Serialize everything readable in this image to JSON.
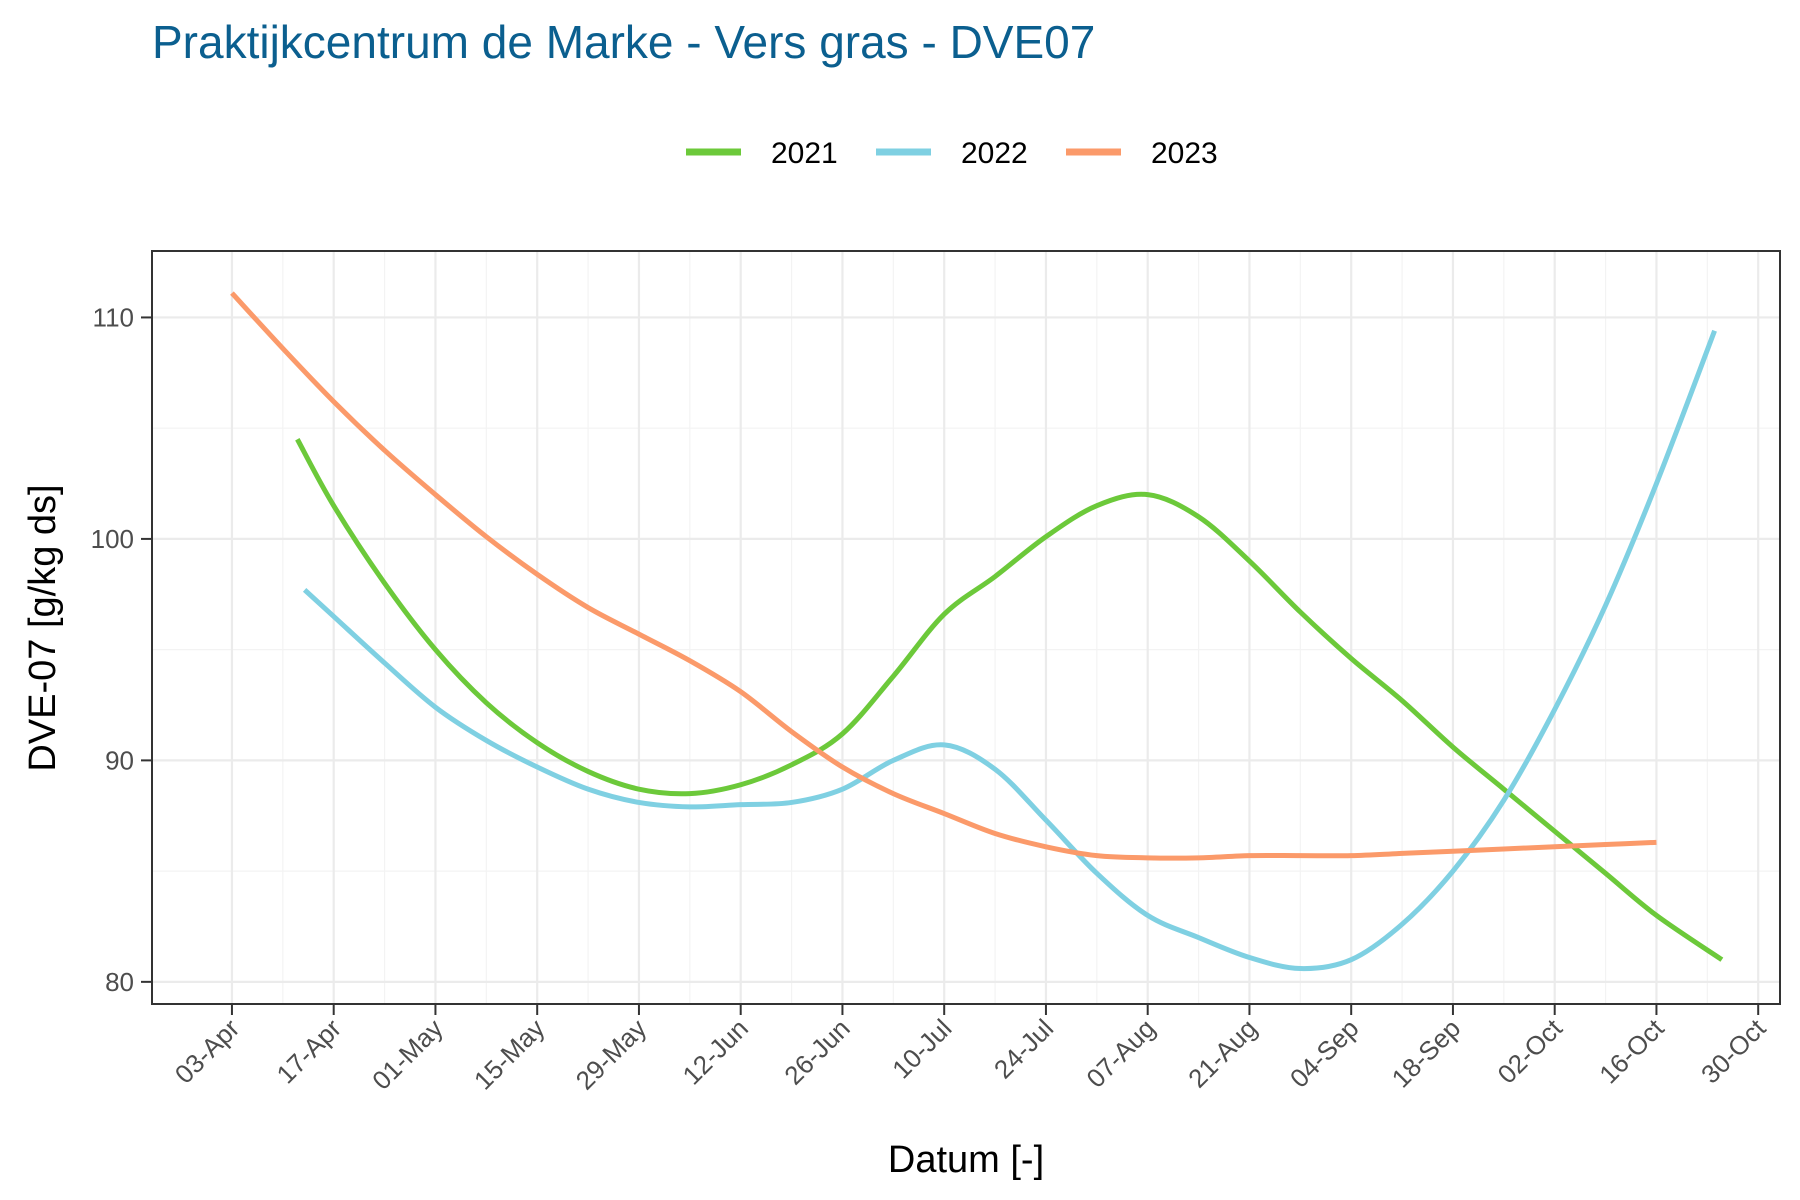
{
  "chart_data": {
    "type": "line",
    "title": "Praktijkcentrum de Marke - Vers gras - DVE07",
    "xlabel": "Datum [-]",
    "ylabel": "DVE-07 [g/kg ds]",
    "x_type": "date",
    "year_label_basis": "2023",
    "xlim": [
      "2023-03-23",
      "2023-11-02"
    ],
    "ylim": [
      79.0,
      113.0
    ],
    "x_ticks": [
      "2023-04-03",
      "2023-04-17",
      "2023-05-01",
      "2023-05-15",
      "2023-05-29",
      "2023-06-12",
      "2023-06-26",
      "2023-07-10",
      "2023-07-24",
      "2023-08-07",
      "2023-08-21",
      "2023-09-04",
      "2023-09-18",
      "2023-10-02",
      "2023-10-16",
      "2023-10-30"
    ],
    "x_tick_labels": [
      "03-Apr",
      "17-Apr",
      "01-May",
      "15-May",
      "29-May",
      "12-Jun",
      "26-Jun",
      "10-Jul",
      "24-Jul",
      "07-Aug",
      "21-Aug",
      "04-Sep",
      "18-Sep",
      "02-Oct",
      "16-Oct",
      "30-Oct"
    ],
    "y_ticks": [
      80,
      90,
      100,
      110
    ],
    "y_tick_labels": [
      "80",
      "90",
      "100",
      "110"
    ],
    "grid": true,
    "legend_position": "top",
    "series": [
      {
        "name": "2021",
        "color": "#6cc93a",
        "points": [
          [
            "2023-04-12",
            104.5
          ],
          [
            "2023-04-17",
            101.5
          ],
          [
            "2023-04-24",
            98.0
          ],
          [
            "2023-05-01",
            95.0
          ],
          [
            "2023-05-08",
            92.6
          ],
          [
            "2023-05-15",
            90.8
          ],
          [
            "2023-05-22",
            89.5
          ],
          [
            "2023-05-29",
            88.7
          ],
          [
            "2023-06-05",
            88.5
          ],
          [
            "2023-06-12",
            88.9
          ],
          [
            "2023-06-19",
            89.8
          ],
          [
            "2023-06-26",
            91.2
          ],
          [
            "2023-07-03",
            93.8
          ],
          [
            "2023-07-10",
            96.6
          ],
          [
            "2023-07-17",
            98.3
          ],
          [
            "2023-07-24",
            100.1
          ],
          [
            "2023-07-31",
            101.5
          ],
          [
            "2023-08-07",
            102.0
          ],
          [
            "2023-08-14",
            101.0
          ],
          [
            "2023-08-21",
            99.0
          ],
          [
            "2023-08-28",
            96.7
          ],
          [
            "2023-09-04",
            94.6
          ],
          [
            "2023-09-11",
            92.7
          ],
          [
            "2023-09-18",
            90.6
          ],
          [
            "2023-09-25",
            88.7
          ],
          [
            "2023-10-02",
            86.8
          ],
          [
            "2023-10-09",
            84.9
          ],
          [
            "2023-10-16",
            83.0
          ],
          [
            "2023-10-25",
            81.0
          ]
        ]
      },
      {
        "name": "2022",
        "color": "#7fd0e2",
        "points": [
          [
            "2023-04-13",
            97.7
          ],
          [
            "2023-04-17",
            96.5
          ],
          [
            "2023-04-24",
            94.4
          ],
          [
            "2023-05-01",
            92.4
          ],
          [
            "2023-05-08",
            90.9
          ],
          [
            "2023-05-15",
            89.7
          ],
          [
            "2023-05-22",
            88.7
          ],
          [
            "2023-05-29",
            88.1
          ],
          [
            "2023-06-05",
            87.9
          ],
          [
            "2023-06-12",
            88.0
          ],
          [
            "2023-06-19",
            88.1
          ],
          [
            "2023-06-26",
            88.7
          ],
          [
            "2023-07-03",
            90.0
          ],
          [
            "2023-07-10",
            90.7
          ],
          [
            "2023-07-17",
            89.6
          ],
          [
            "2023-07-24",
            87.3
          ],
          [
            "2023-07-31",
            84.9
          ],
          [
            "2023-08-07",
            83.0
          ],
          [
            "2023-08-14",
            82.0
          ],
          [
            "2023-08-21",
            81.1
          ],
          [
            "2023-08-28",
            80.6
          ],
          [
            "2023-09-04",
            81.0
          ],
          [
            "2023-09-11",
            82.6
          ],
          [
            "2023-09-18",
            85.0
          ],
          [
            "2023-09-25",
            88.2
          ],
          [
            "2023-10-02",
            92.3
          ],
          [
            "2023-10-09",
            97.0
          ],
          [
            "2023-10-16",
            102.5
          ],
          [
            "2023-10-24",
            109.4
          ]
        ]
      },
      {
        "name": "2023",
        "color": "#fb9a6a",
        "points": [
          [
            "2023-04-03",
            111.1
          ],
          [
            "2023-04-10",
            108.6
          ],
          [
            "2023-04-17",
            106.2
          ],
          [
            "2023-04-24",
            104.0
          ],
          [
            "2023-05-01",
            102.0
          ],
          [
            "2023-05-08",
            100.1
          ],
          [
            "2023-05-15",
            98.4
          ],
          [
            "2023-05-22",
            96.9
          ],
          [
            "2023-05-29",
            95.7
          ],
          [
            "2023-06-05",
            94.5
          ],
          [
            "2023-06-12",
            93.1
          ],
          [
            "2023-06-19",
            91.3
          ],
          [
            "2023-06-26",
            89.7
          ],
          [
            "2023-07-03",
            88.5
          ],
          [
            "2023-07-10",
            87.6
          ],
          [
            "2023-07-17",
            86.7
          ],
          [
            "2023-07-24",
            86.1
          ],
          [
            "2023-07-31",
            85.7
          ],
          [
            "2023-08-07",
            85.6
          ],
          [
            "2023-08-14",
            85.6
          ],
          [
            "2023-08-21",
            85.7
          ],
          [
            "2023-08-28",
            85.7
          ],
          [
            "2023-09-04",
            85.7
          ],
          [
            "2023-09-11",
            85.8
          ],
          [
            "2023-09-18",
            85.9
          ],
          [
            "2023-09-25",
            86.0
          ],
          [
            "2023-10-02",
            86.1
          ],
          [
            "2023-10-09",
            86.2
          ],
          [
            "2023-10-16",
            86.3
          ]
        ]
      }
    ]
  }
}
